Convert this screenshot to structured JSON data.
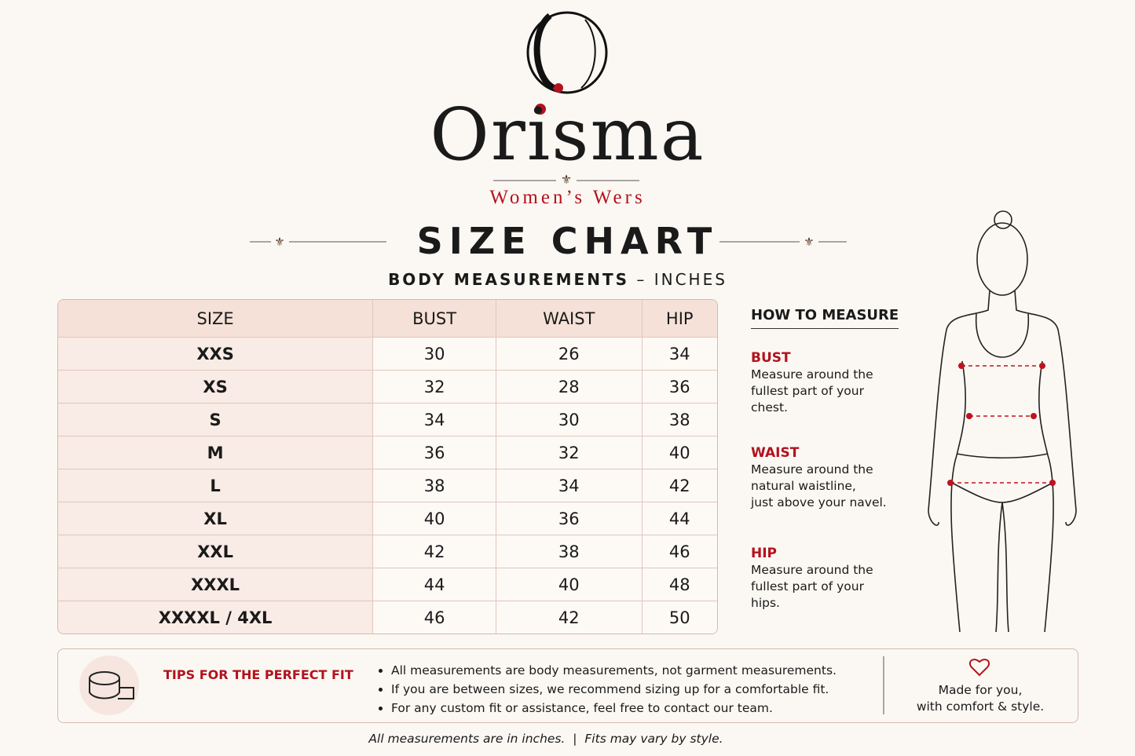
{
  "brand": {
    "name": "Orisma",
    "tagline": "Women’s Wers"
  },
  "title": "SIZE CHART",
  "subtitle": {
    "main": "BODY MEASUREMENTS",
    "separator": "–",
    "unit": "INCHES"
  },
  "table": {
    "headers": [
      "SIZE",
      "BUST",
      "WAIST",
      "HIP"
    ],
    "rows": [
      [
        "XXS",
        30,
        26,
        34
      ],
      [
        "XS",
        32,
        28,
        36
      ],
      [
        "S",
        34,
        30,
        38
      ],
      [
        "M",
        36,
        32,
        40
      ],
      [
        "L",
        38,
        34,
        42
      ],
      [
        "XL",
        40,
        36,
        44
      ],
      [
        "XXL",
        42,
        38,
        46
      ],
      [
        "XXXL",
        44,
        40,
        48
      ],
      [
        "XXXXL / 4XL",
        46,
        42,
        50
      ]
    ]
  },
  "how_to_measure": {
    "title": "HOW TO MEASURE",
    "items": [
      {
        "label": "BUST",
        "lines": [
          "Measure around the",
          "fullest part of your",
          "chest."
        ]
      },
      {
        "label": "WAIST",
        "lines": [
          "Measure around the",
          "natural waistline,",
          "just above your navel."
        ]
      },
      {
        "label": "HIP",
        "lines": [
          "Measure around the",
          "fullest part of your",
          "hips."
        ]
      }
    ]
  },
  "tips": {
    "title": "TIPS FOR THE PERFECT FIT",
    "items": [
      "All measurements are body measurements, not garment measurements.",
      "If you are between sizes, we recommend sizing up for a comfortable fit.",
      "For any custom fit or assistance, feel free to contact our team."
    ],
    "note": [
      "Made for you,",
      "with comfort & style."
    ]
  },
  "footer": {
    "left": "All measurements are in inches.",
    "separator": "|",
    "right": "Fits may vary by style."
  }
}
